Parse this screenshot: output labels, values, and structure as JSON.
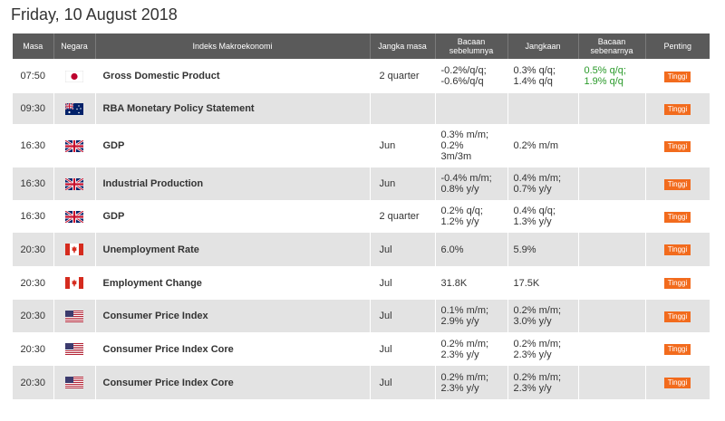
{
  "date_title": "Friday, 10 August 2018",
  "headers": {
    "time": "Masa",
    "country": "Negara",
    "index": "Indeks Makroekonomi",
    "period": "Jangka masa",
    "previous": "Bacaan sebelumnya",
    "forecast": "Jangkaan",
    "actual": "Bacaan sebenarnya",
    "importance": "Penting"
  },
  "rows": [
    {
      "time": "07:50",
      "flag": "japan-flag-icon",
      "name": "Gross Domestic Product",
      "period": "2 quarter",
      "previous": [
        "-0.2%/q/q;",
        "-0.6%/q/q"
      ],
      "forecast": [
        "0.3% q/q;",
        "1.4% q/q"
      ],
      "actual": [
        "0.5% q/q;",
        "1.9% q/q"
      ],
      "importance": "Tinggi"
    },
    {
      "time": "09:30",
      "flag": "australia-flag-icon",
      "name": "RBA Monetary Policy Statement",
      "period": "",
      "previous": [],
      "forecast": [],
      "actual": [],
      "importance": "Tinggi"
    },
    {
      "time": "16:30",
      "flag": "uk-flag-icon",
      "name": "GDP",
      "period": "Jun",
      "previous": [
        "0.3% m/m;",
        "0.2%",
        "3m/3m"
      ],
      "forecast": [
        "0.2% m/m"
      ],
      "actual": [],
      "importance": "Tinggi"
    },
    {
      "time": "16:30",
      "flag": "uk-flag-icon",
      "name": "Industrial Production",
      "period": "Jun",
      "previous": [
        "-0.4% m/m;",
        "0.8% y/y"
      ],
      "forecast": [
        "0.4% m/m;",
        "0.7% y/y"
      ],
      "actual": [],
      "importance": "Tinggi"
    },
    {
      "time": "16:30",
      "flag": "uk-flag-icon",
      "name": "GDP",
      "period": "2 quarter",
      "previous": [
        "0.2% q/q;",
        "1.2% y/y"
      ],
      "forecast": [
        "0.4% q/q;",
        "1.3% y/y"
      ],
      "actual": [],
      "importance": "Tinggi"
    },
    {
      "time": "20:30",
      "flag": "canada-flag-icon",
      "name": "Unemployment Rate",
      "period": "Jul",
      "previous": [
        "6.0%"
      ],
      "forecast": [
        "5.9%"
      ],
      "actual": [],
      "importance": "Tinggi"
    },
    {
      "time": "20:30",
      "flag": "canada-flag-icon",
      "name": "Employment Change",
      "period": "Jul",
      "previous": [
        "31.8K"
      ],
      "forecast": [
        "17.5K"
      ],
      "actual": [],
      "importance": "Tinggi"
    },
    {
      "time": "20:30",
      "flag": "usa-flag-icon",
      "name": "Consumer Price Index",
      "period": "Jul",
      "previous": [
        "0.1% m/m;",
        "2.9% y/y"
      ],
      "forecast": [
        "0.2% m/m;",
        "3.0% y/y"
      ],
      "actual": [],
      "importance": "Tinggi"
    },
    {
      "time": "20:30",
      "flag": "usa-flag-icon",
      "name": "Consumer Price Index Core",
      "period": "Jul",
      "previous": [
        "0.2% m/m;",
        "2.3% y/y"
      ],
      "forecast": [
        "0.2% m/m;",
        "2.3% y/y"
      ],
      "actual": [],
      "importance": "Tinggi"
    },
    {
      "time": "20:30",
      "flag": "usa-flag-icon",
      "name": "Consumer Price Index Core",
      "period": "Jul",
      "previous": [
        "0.2% m/m;",
        "2.3% y/y"
      ],
      "forecast": [
        "0.2% m/m;",
        "2.3% y/y"
      ],
      "actual": [],
      "importance": "Tinggi"
    }
  ],
  "colors": {
    "header_bg": "#5a5a5a",
    "row_alt_bg": "#e3e3e3",
    "actual_text": "#2a9a2a",
    "badge_bg": "#f26b1d"
  }
}
